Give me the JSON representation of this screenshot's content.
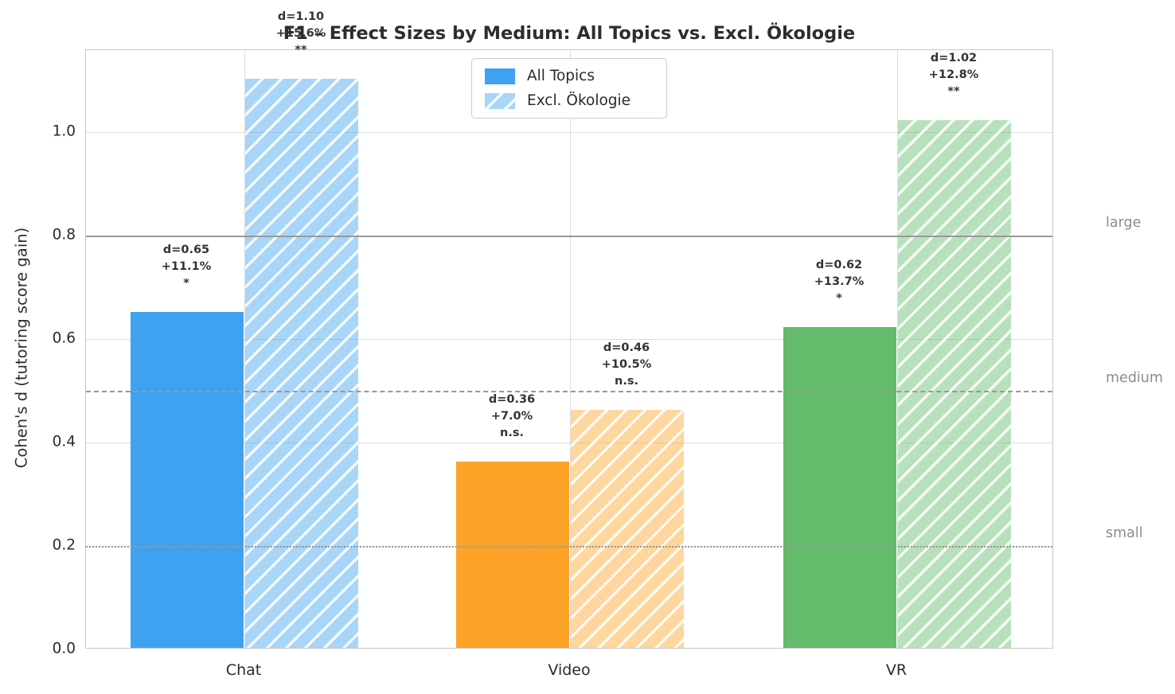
{
  "chart_data": {
    "type": "bar",
    "title": "F1 – Effect Sizes by Medium: All Topics vs. Excl. Ökologie",
    "xlabel": "",
    "ylabel": "Cohen's d (tutoring score gain)",
    "categories": [
      "Chat",
      "Video",
      "VR"
    ],
    "series": [
      {
        "name": "All Topics",
        "pattern": "solid",
        "values": [
          0.65,
          0.36,
          0.62
        ],
        "annotations": [
          [
            "d=0.65",
            "+11.1%",
            "*"
          ],
          [
            "d=0.36",
            "+7.0%",
            "n.s."
          ],
          [
            "d=0.62",
            "+13.7%",
            "*"
          ]
        ]
      },
      {
        "name": "Excl. Ökologie",
        "pattern": "hatched",
        "values": [
          1.1,
          0.46,
          1.02
        ],
        "annotations": [
          [
            "d=1.10",
            "+15.6%",
            "**"
          ],
          [
            "d=0.46",
            "+10.5%",
            "n.s."
          ],
          [
            "d=1.02",
            "+12.8%",
            "**"
          ]
        ]
      }
    ],
    "group_colors": [
      {
        "category": "Chat",
        "solid": "#3FA2F0",
        "hatched_fill": "#A7CEF4"
      },
      {
        "category": "Video",
        "solid": "#FDA428",
        "hatched_fill": "#FED197"
      },
      {
        "category": "VR",
        "solid": "#63BB6B",
        "hatched_fill": "#ABDAAC"
      }
    ],
    "yticks": [
      "0.0",
      "0.2",
      "0.4",
      "0.6",
      "0.8",
      "1.0"
    ],
    "ylim": [
      0,
      1.158
    ],
    "grid": true,
    "hatch": "/",
    "legend": {
      "position": "upper center",
      "entries": [
        {
          "label": "All Topics",
          "pattern": "solid"
        },
        {
          "label": "Excl. Ökologie",
          "pattern": "hatched"
        }
      ]
    },
    "reference_lines": [
      {
        "value": 0.8,
        "label": "large",
        "line_style": "solid"
      },
      {
        "value": 0.5,
        "label": "medium",
        "line_style": "dashed"
      },
      {
        "value": 0.2,
        "label": "small",
        "line_style": "dotted"
      }
    ],
    "colors": {
      "grid": "#DCDCDC",
      "spine": "#C8C8C8",
      "reference_line": "#999999",
      "annotation_text": "#333333",
      "title_text": "#2D2D2D",
      "tick_text": "#2B2B2B",
      "side_label_text": "#8C8C8C",
      "hatch_line": "#FFFFFF"
    }
  }
}
